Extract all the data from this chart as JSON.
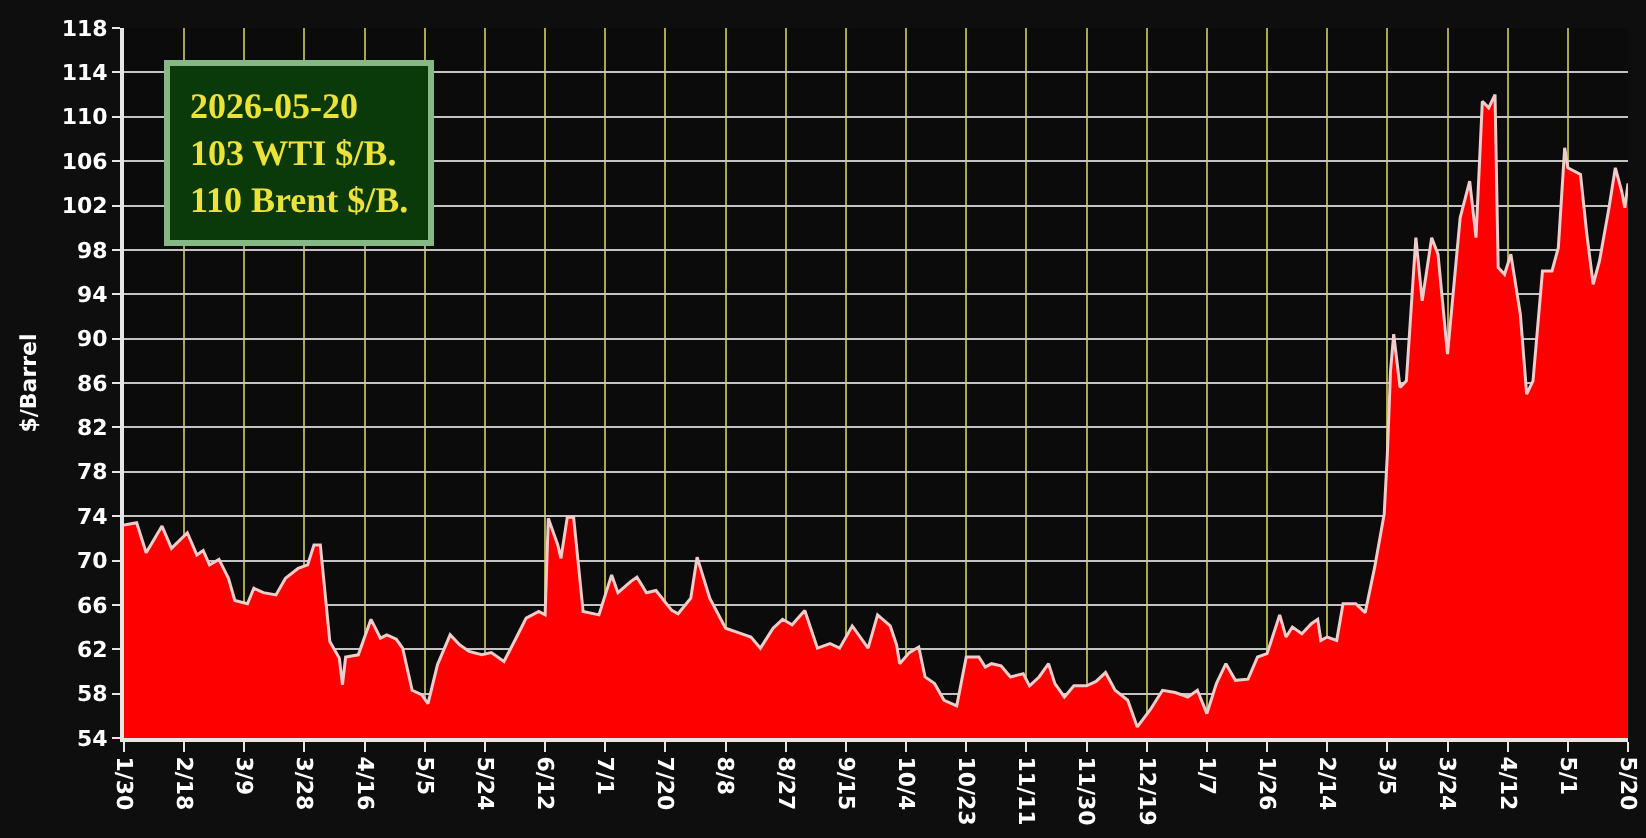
{
  "chart_data": {
    "type": "area",
    "ylabel": "$/Barrel",
    "annotations": [
      "2026-05-20\n103 WTI $/B.\n110 Brent $/B."
    ],
    "x": [
      "2025-01-30",
      "2025-02-03",
      "2025-02-06",
      "2025-02-11",
      "2025-02-14",
      "2025-02-19",
      "2025-02-22",
      "2025-02-24",
      "2025-02-26",
      "2025-03-01",
      "2025-03-04",
      "2025-03-06",
      "2025-03-10",
      "2025-03-12",
      "2025-03-15",
      "2025-03-19",
      "2025-03-22",
      "2025-03-26",
      "2025-03-29",
      "2025-03-31",
      "2025-04-02",
      "2025-04-05",
      "2025-04-08",
      "2025-04-09",
      "2025-04-10",
      "2025-04-14",
      "2025-04-18",
      "2025-04-21",
      "2025-04-23",
      "2025-04-26",
      "2025-04-28",
      "2025-05-01",
      "2025-05-04",
      "2025-05-06",
      "2025-05-09",
      "2025-05-13",
      "2025-05-16",
      "2025-05-19",
      "2025-05-23",
      "2025-05-26",
      "2025-05-30",
      "2025-06-03",
      "2025-06-06",
      "2025-06-10",
      "2025-06-12",
      "2025-06-13",
      "2025-06-16",
      "2025-06-17",
      "2025-06-19",
      "2025-06-21",
      "2025-06-24",
      "2025-06-29",
      "2025-07-03",
      "2025-07-05",
      "2025-07-09",
      "2025-07-11",
      "2025-07-14",
      "2025-07-17",
      "2025-07-22",
      "2025-07-24",
      "2025-07-28",
      "2025-07-30",
      "2025-08-03",
      "2025-08-08",
      "2025-08-12",
      "2025-08-16",
      "2025-08-19",
      "2025-08-23",
      "2025-08-26",
      "2025-08-29",
      "2025-09-02",
      "2025-09-06",
      "2025-09-10",
      "2025-09-13",
      "2025-09-17",
      "2025-09-22",
      "2025-09-25",
      "2025-09-29",
      "2025-10-01",
      "2025-10-02",
      "2025-10-05",
      "2025-10-08",
      "2025-10-10",
      "2025-10-13",
      "2025-10-16",
      "2025-10-20",
      "2025-10-23",
      "2025-10-27",
      "2025-10-29",
      "2025-10-31",
      "2025-11-03",
      "2025-11-06",
      "2025-11-10",
      "2025-11-12",
      "2025-11-15",
      "2025-11-18",
      "2025-11-20",
      "2025-11-23",
      "2025-11-26",
      "2025-11-30",
      "2025-12-03",
      "2025-12-06",
      "2025-12-09",
      "2025-12-13",
      "2025-12-16",
      "2025-12-20",
      "2025-12-24",
      "2025-12-28",
      "2026-01-01",
      "2026-01-04",
      "2026-01-07",
      "2026-01-10",
      "2026-01-13",
      "2026-01-16",
      "2026-01-20",
      "2026-01-23",
      "2026-01-26",
      "2026-01-30",
      "2026-02-01",
      "2026-02-03",
      "2026-02-06",
      "2026-02-09",
      "2026-02-11",
      "2026-02-12",
      "2026-02-14",
      "2026-02-17",
      "2026-02-19",
      "2026-02-23",
      "2026-02-26",
      "2026-03-01",
      "2026-03-04",
      "2026-03-05",
      "2026-03-06",
      "2026-03-07",
      "2026-03-09",
      "2026-03-11",
      "2026-03-14",
      "2026-03-16",
      "2026-03-19",
      "2026-03-21",
      "2026-03-24",
      "2026-03-28",
      "2026-03-31",
      "2026-04-02",
      "2026-04-04",
      "2026-04-06",
      "2026-04-08",
      "2026-04-09",
      "2026-04-11",
      "2026-04-13",
      "2026-04-16",
      "2026-04-18",
      "2026-04-20",
      "2026-04-23",
      "2026-04-26",
      "2026-04-28",
      "2026-04-30",
      "2026-05-01",
      "2026-05-05",
      "2026-05-07",
      "2026-05-09",
      "2026-05-11",
      "2026-05-14",
      "2026-05-16",
      "2026-05-18",
      "2026-05-19",
      "2026-05-20"
    ],
    "series": [
      {
        "color": "#ff0000",
        "values": [
          73.2,
          73.4,
          70.7,
          73.1,
          71.1,
          72.5,
          70.5,
          70.9,
          69.6,
          70.1,
          68.4,
          66.4,
          66.1,
          67.5,
          67.1,
          66.9,
          68.4,
          69.3,
          69.6,
          71.4,
          71.4,
          62.7,
          61.2,
          58.8,
          61.3,
          61.5,
          64.7,
          63.0,
          63.3,
          62.9,
          62.1,
          58.3,
          57.9,
          57.1,
          60.6,
          63.3,
          62.4,
          61.8,
          61.5,
          61.7,
          60.9,
          63.1,
          64.8,
          65.4,
          65.1,
          73.8,
          71.4,
          70.2,
          73.9,
          73.9,
          65.4,
          65.1,
          68.7,
          67.1,
          68.1,
          68.5,
          67.1,
          67.3,
          65.5,
          65.2,
          66.6,
          70.3,
          66.6,
          63.9,
          63.5,
          63.1,
          62.1,
          63.9,
          64.7,
          64.2,
          65.5,
          62.1,
          62.5,
          62.1,
          64.1,
          62.1,
          65.1,
          64.1,
          62.4,
          60.7,
          61.7,
          62.2,
          59.5,
          58.9,
          57.4,
          56.9,
          61.3,
          61.3,
          60.4,
          60.7,
          60.5,
          59.5,
          59.8,
          58.7,
          59.5,
          60.7,
          58.9,
          57.7,
          58.7,
          58.7,
          59.1,
          59.9,
          58.3,
          57.4,
          55.0,
          56.5,
          58.3,
          58.1,
          57.7,
          58.3,
          56.2,
          58.9,
          60.7,
          59.2,
          59.3,
          61.3,
          61.6,
          65.1,
          63.1,
          64.0,
          63.4,
          64.3,
          64.7,
          62.8,
          63.1,
          62.8,
          66.1,
          66.1,
          65.3,
          69.4,
          74.2,
          79.6,
          87.1,
          90.4,
          85.6,
          86.2,
          99.1,
          93.4,
          99.1,
          97.6,
          88.6,
          100.9,
          104.2,
          99.1,
          111.4,
          110.8,
          112.0,
          96.4,
          95.8,
          97.6,
          92.2,
          85.0,
          86.2,
          96.1,
          96.1,
          98.2,
          107.2,
          105.4,
          104.8,
          99.4,
          94.9,
          97.0,
          101.8,
          105.4,
          103.3,
          101.8,
          104.0
        ]
      }
    ],
    "xlim": [
      "2025-01-30",
      "2026-05-20"
    ],
    "xticks": [
      {
        "value": "2025-01-30",
        "label": "1/30"
      },
      {
        "value": "2025-02-18",
        "label": "2/18"
      },
      {
        "value": "2025-03-09",
        "label": "3/9"
      },
      {
        "value": "2025-03-28",
        "label": "3/28"
      },
      {
        "value": "2025-04-16",
        "label": "4/16"
      },
      {
        "value": "2025-05-05",
        "label": "5/5"
      },
      {
        "value": "2025-05-24",
        "label": "5/24"
      },
      {
        "value": "2025-06-12",
        "label": "6/12"
      },
      {
        "value": "2025-07-01",
        "label": "7/1"
      },
      {
        "value": "2025-07-20",
        "label": "7/20"
      },
      {
        "value": "2025-08-08",
        "label": "8/8"
      },
      {
        "value": "2025-08-27",
        "label": "8/27"
      },
      {
        "value": "2025-09-15",
        "label": "9/15"
      },
      {
        "value": "2025-10-04",
        "label": "10/4"
      },
      {
        "value": "2025-10-23",
        "label": "10/23"
      },
      {
        "value": "2025-11-11",
        "label": "11/11"
      },
      {
        "value": "2025-11-30",
        "label": "11/30"
      },
      {
        "value": "2025-12-19",
        "label": "12/19"
      },
      {
        "value": "2026-01-07",
        "label": "1/7"
      },
      {
        "value": "2026-01-26",
        "label": "1/26"
      },
      {
        "value": "2026-02-14",
        "label": "2/14"
      },
      {
        "value": "2026-03-05",
        "label": "3/5"
      },
      {
        "value": "2026-03-24",
        "label": "3/24"
      },
      {
        "value": "2026-04-12",
        "label": "4/12"
      },
      {
        "value": "2026-05-01",
        "label": "5/1"
      },
      {
        "value": "2026-05-20",
        "label": "5/20"
      }
    ],
    "ylim": [
      54,
      118
    ],
    "yticks": [
      54,
      58,
      62,
      66,
      70,
      74,
      78,
      82,
      86,
      90,
      94,
      98,
      102,
      106,
      110,
      114,
      118
    ],
    "grid": true
  }
}
